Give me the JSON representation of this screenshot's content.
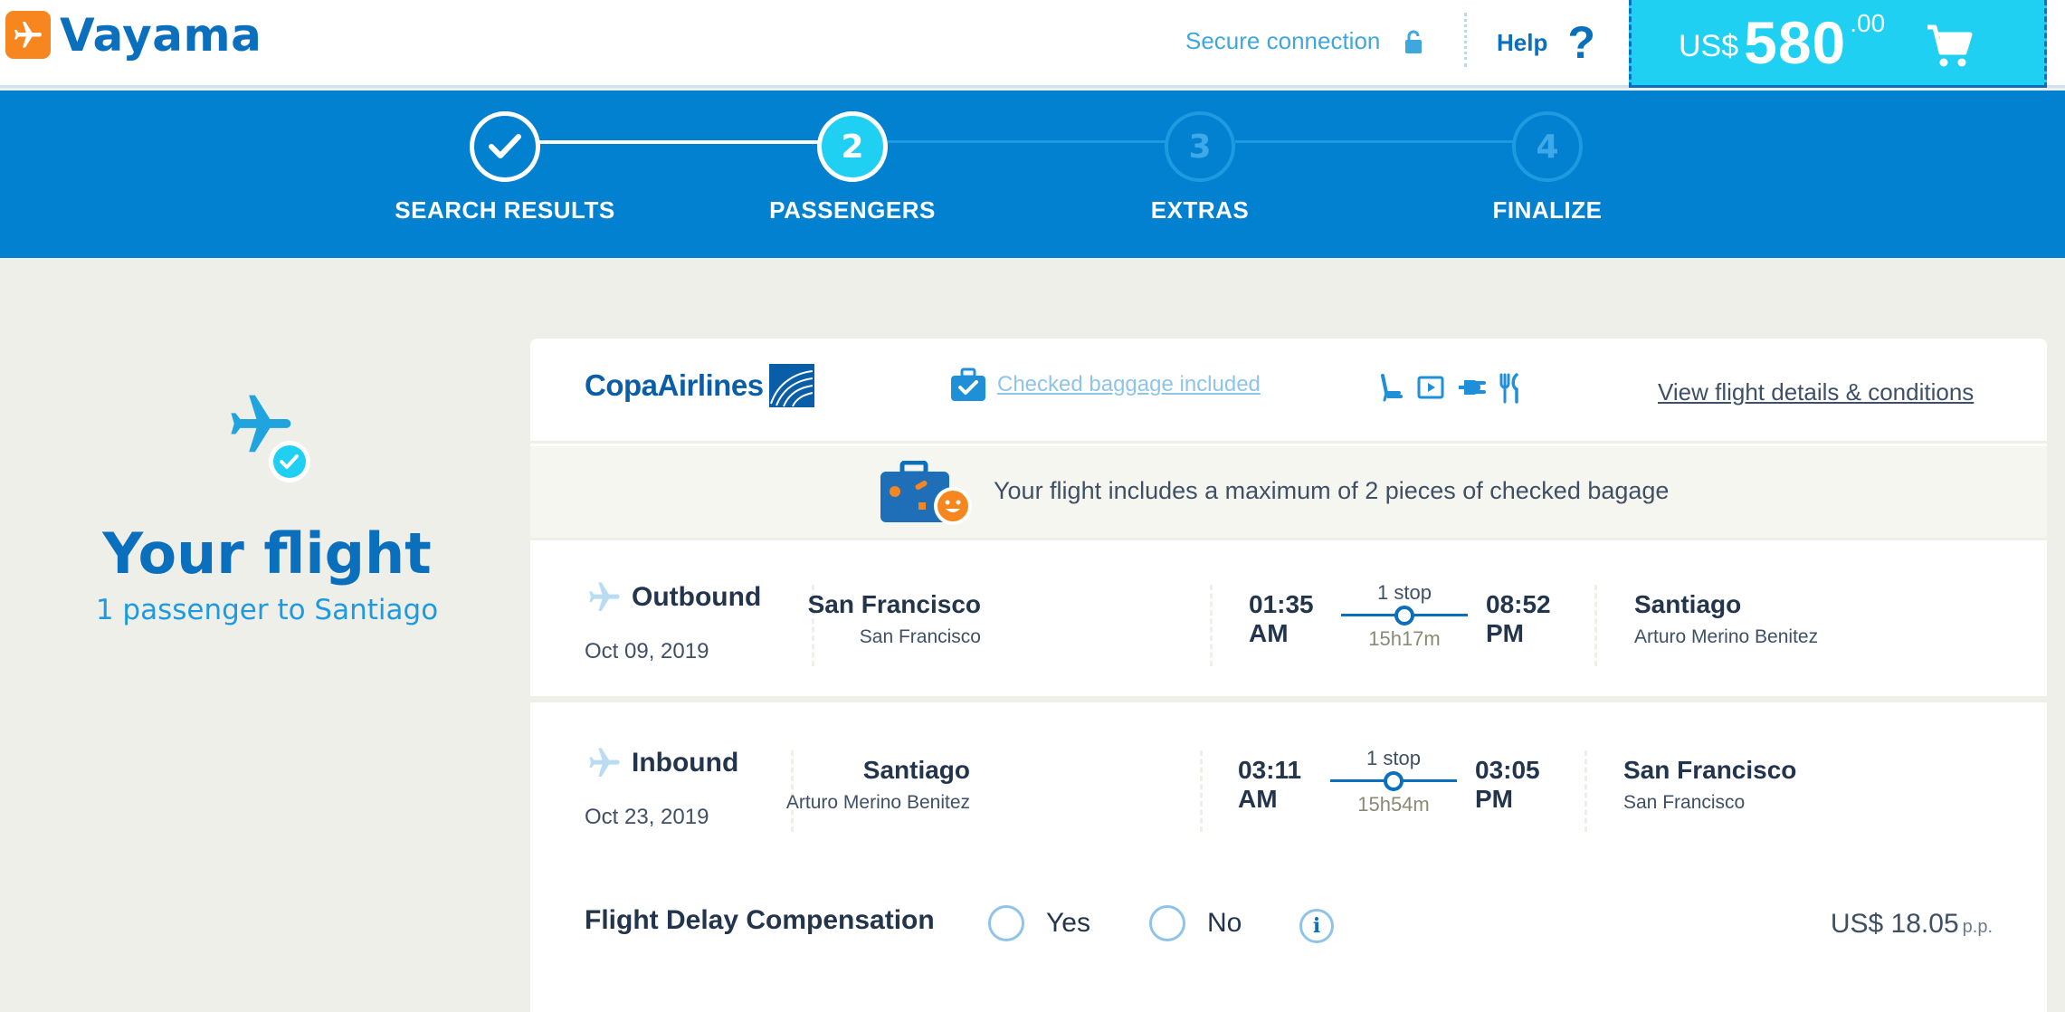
{
  "header": {
    "brand": "Vayama",
    "secure_label": "Secure connection",
    "help_label": "Help",
    "help_symbol": "?",
    "cart": {
      "currency": "US$",
      "amount": "580",
      "decimals": ".00"
    }
  },
  "steps": [
    {
      "label": "SEARCH RESULTS",
      "number": "",
      "state": "done"
    },
    {
      "label": "PASSENGERS",
      "number": "2",
      "state": "active"
    },
    {
      "label": "EXTRAS",
      "number": "3",
      "state": "todo"
    },
    {
      "label": "FINALIZE",
      "number": "4",
      "state": "todo"
    }
  ],
  "summary": {
    "title": "Your flight",
    "subtitle": "1 passenger to Santiago"
  },
  "flight": {
    "airline": "CopaAirlines",
    "baggage_link": "Checked baggage included",
    "amenities": [
      "seat-icon",
      "video-icon",
      "power-icon",
      "meal-icon"
    ],
    "details_link": "View flight details & conditions",
    "baggage_banner": "Your flight includes a maximum of 2 pieces of checked bagage",
    "outbound": {
      "direction": "Outbound",
      "date": "Oct 09, 2019",
      "from_city": "San Francisco",
      "from_airport": "San Francisco",
      "depart_time": "01:35",
      "depart_ampm": "AM",
      "stops": "1 stop",
      "duration": "15h17m",
      "arrive_time": "08:52",
      "arrive_ampm": "PM",
      "to_city": "Santiago",
      "to_airport": "Arturo Merino Benitez"
    },
    "inbound": {
      "direction": "Inbound",
      "date": "Oct 23, 2019",
      "from_city": "Santiago",
      "from_airport": "Arturo Merino Benitez",
      "depart_time": "03:11",
      "depart_ampm": "AM",
      "stops": "1 stop",
      "duration": "15h54m",
      "arrive_time": "03:05",
      "arrive_ampm": "PM",
      "to_city": "San Francisco",
      "to_airport": "San Francisco"
    }
  },
  "delay_compensation": {
    "label": "Flight Delay Compensation",
    "yes_label": "Yes",
    "no_label": "No",
    "info_symbol": "i",
    "price": "US$ 18.05",
    "price_unit": "p.p."
  },
  "colors": {
    "brand_blue": "#0a6fbd",
    "steps_bg": "#0381d1",
    "cart_bg": "#1fd0f2",
    "orange": "#f7861f"
  }
}
